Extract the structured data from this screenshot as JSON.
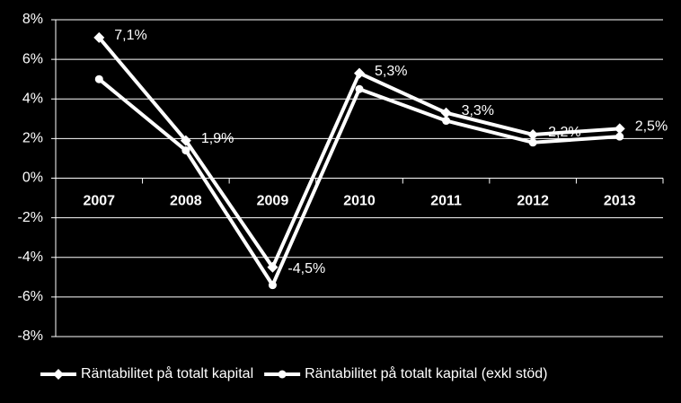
{
  "chart_data": {
    "type": "line",
    "categories": [
      "2007",
      "2008",
      "2009",
      "2010",
      "2011",
      "2012",
      "2013"
    ],
    "series": [
      {
        "name": "Räntabilitet på totalt kapital",
        "color": "#ffffff",
        "marker": "diamond",
        "values": [
          7.1,
          1.9,
          -4.5,
          5.3,
          3.3,
          2.2,
          2.5
        ],
        "value_labels": [
          "7,1%",
          "1,9%",
          "-4,5%",
          "5,3%",
          "3,3%",
          "2,2%",
          "2,5%"
        ]
      },
      {
        "name": "Räntabilitet på totalt kapital (exkl stöd)",
        "color": "#ffffff",
        "marker": "circle",
        "values": [
          5.0,
          1.4,
          -5.4,
          4.5,
          2.9,
          1.8,
          2.1
        ]
      }
    ],
    "ylim": [
      -8,
      8
    ],
    "yticks": [
      {
        "value": -8,
        "label": "-8%"
      },
      {
        "value": -6,
        "label": "-6%"
      },
      {
        "value": -4,
        "label": "-4%"
      },
      {
        "value": -2,
        "label": "-2%"
      },
      {
        "value": 0,
        "label": "0%"
      },
      {
        "value": 2,
        "label": "2%"
      },
      {
        "value": 4,
        "label": "4%"
      },
      {
        "value": 6,
        "label": "6%"
      },
      {
        "value": 8,
        "label": "8%"
      }
    ],
    "grid": true,
    "legend": "bottom"
  }
}
